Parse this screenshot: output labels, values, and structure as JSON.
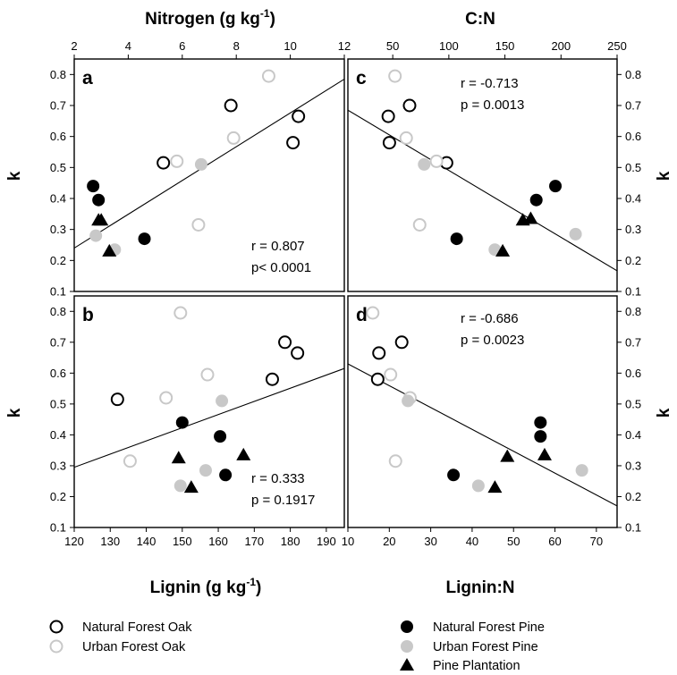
{
  "legend": [
    {
      "key": "NFO",
      "label": "Natural Forest Oak",
      "marker": "circle-open",
      "color": "#000000"
    },
    {
      "key": "UFO",
      "label": "Urban Forest Oak",
      "marker": "circle-open",
      "color": "#c8c8c8"
    },
    {
      "key": "NFP",
      "label": "Natural Forest Pine",
      "marker": "circle-filled",
      "color": "#000000"
    },
    {
      "key": "UFP",
      "label": "Urban Forest Pine",
      "marker": "circle-filled",
      "color": "#c8c8c8"
    },
    {
      "key": "PP",
      "label": "Pine Plantation",
      "marker": "triangle",
      "color": "#000000"
    }
  ],
  "chart_data": [
    {
      "panel": "a",
      "type": "scatter",
      "xlabel": "Nitrogen (g kg",
      "xlabel_sup": "-1",
      "xlabel_end": ")",
      "ylabel": "k",
      "xlim": [
        2,
        12
      ],
      "ylim": [
        0.1,
        0.85
      ],
      "xticks": [
        2,
        4,
        6,
        8,
        10,
        12
      ],
      "yticks": [
        0.1,
        0.2,
        0.3,
        0.4,
        0.5,
        0.6,
        0.7,
        0.8
      ],
      "stats": [
        "r = 0.807",
        "p< 0.0001"
      ],
      "fit_line": [
        [
          2,
          0.24
        ],
        [
          12,
          0.785
        ]
      ],
      "series": [
        {
          "key": "NFO",
          "x": [
            5.3,
            7.8,
            10.3,
            10.1
          ],
          "y": [
            0.515,
            0.7,
            0.665,
            0.58
          ]
        },
        {
          "key": "UFO",
          "x": [
            9.2,
            7.9,
            5.8,
            6.6
          ],
          "y": [
            0.795,
            0.595,
            0.52,
            0.315
          ]
        },
        {
          "key": "NFP",
          "x": [
            2.7,
            2.9,
            4.6
          ],
          "y": [
            0.44,
            0.395,
            0.27
          ]
        },
        {
          "key": "UFP",
          "x": [
            2.8,
            6.7,
            3.5
          ],
          "y": [
            0.28,
            0.51,
            0.235
          ]
        },
        {
          "key": "PP",
          "x": [
            2.9,
            3.0,
            3.3
          ],
          "y": [
            0.33,
            0.33,
            0.23
          ]
        }
      ]
    },
    {
      "panel": "c",
      "type": "scatter",
      "xlabel": "C:N",
      "ylabel": "k",
      "xlim": [
        10,
        250
      ],
      "ylim": [
        0.1,
        0.85
      ],
      "xticks": [
        50,
        100,
        150,
        200,
        250
      ],
      "yticks": [
        0.1,
        0.2,
        0.3,
        0.4,
        0.5,
        0.6,
        0.7,
        0.8
      ],
      "stats": [
        "r = -0.713",
        "p = 0.0013"
      ],
      "fit_line": [
        [
          10,
          0.685
        ],
        [
          260,
          0.145
        ]
      ],
      "series": [
        {
          "key": "NFO",
          "x": [
            46,
            65,
            47,
            98
          ],
          "y": [
            0.665,
            0.7,
            0.58,
            0.515
          ]
        },
        {
          "key": "UFO",
          "x": [
            52,
            62,
            89,
            74
          ],
          "y": [
            0.795,
            0.595,
            0.52,
            0.315
          ]
        },
        {
          "key": "NFP",
          "x": [
            178,
            195,
            107
          ],
          "y": [
            0.395,
            0.44,
            0.27
          ]
        },
        {
          "key": "UFP",
          "x": [
            78,
            141,
            213
          ],
          "y": [
            0.51,
            0.235,
            0.285
          ]
        },
        {
          "key": "PP",
          "x": [
            166,
            173,
            148
          ],
          "y": [
            0.33,
            0.335,
            0.23
          ]
        }
      ]
    },
    {
      "panel": "b",
      "type": "scatter",
      "xlabel": "Lignin (g kg",
      "xlabel_sup": "-1",
      "xlabel_end": ")",
      "ylabel": "k",
      "xlim": [
        120,
        195
      ],
      "ylim": [
        0.1,
        0.85
      ],
      "xticks": [
        120,
        130,
        140,
        150,
        160,
        170,
        180,
        190
      ],
      "yticks": [
        0.1,
        0.2,
        0.3,
        0.4,
        0.5,
        0.6,
        0.7,
        0.8
      ],
      "stats": [
        "r = 0.333",
        "p = 0.1917"
      ],
      "fit_line": [
        [
          120,
          0.295
        ],
        [
          195,
          0.615
        ]
      ],
      "series": [
        {
          "key": "NFO",
          "x": [
            132,
            175,
            178.5,
            182
          ],
          "y": [
            0.515,
            0.58,
            0.7,
            0.665
          ]
        },
        {
          "key": "UFO",
          "x": [
            135.5,
            145.5,
            149.5,
            157
          ],
          "y": [
            0.315,
            0.52,
            0.795,
            0.595
          ]
        },
        {
          "key": "NFP",
          "x": [
            150,
            160.5,
            162
          ],
          "y": [
            0.44,
            0.395,
            0.27
          ]
        },
        {
          "key": "UFP",
          "x": [
            149.5,
            156.5,
            161
          ],
          "y": [
            0.235,
            0.285,
            0.51
          ]
        },
        {
          "key": "PP",
          "x": [
            149,
            152.5,
            167
          ],
          "y": [
            0.325,
            0.23,
            0.335
          ]
        }
      ]
    },
    {
      "panel": "d",
      "type": "scatter",
      "xlabel": "Lignin:N",
      "ylabel": "k",
      "xlim": [
        10,
        75
      ],
      "ylim": [
        0.1,
        0.85
      ],
      "xticks": [
        10,
        20,
        30,
        40,
        50,
        60,
        70
      ],
      "yticks": [
        0.1,
        0.2,
        0.3,
        0.4,
        0.5,
        0.6,
        0.7,
        0.8
      ],
      "stats": [
        "r = -0.686",
        "p = 0.0023"
      ],
      "fit_line": [
        [
          10,
          0.63
        ],
        [
          75,
          0.17
        ]
      ],
      "series": [
        {
          "key": "NFO",
          "x": [
            17.5,
            17.2,
            23
          ],
          "y": [
            0.665,
            0.58,
            0.7
          ]
        },
        {
          "key": "UFO",
          "x": [
            16,
            20.3,
            21.5,
            25
          ],
          "y": [
            0.795,
            0.595,
            0.315,
            0.52
          ]
        },
        {
          "key": "NFP",
          "x": [
            35.5,
            56.5,
            56.5
          ],
          "y": [
            0.27,
            0.44,
            0.395
          ]
        },
        {
          "key": "UFP",
          "x": [
            24.5,
            41.5,
            66.5
          ],
          "y": [
            0.51,
            0.235,
            0.285
          ]
        },
        {
          "key": "PP",
          "x": [
            45.5,
            48.5,
            57.5
          ],
          "y": [
            0.23,
            0.33,
            0.335
          ]
        }
      ]
    }
  ]
}
